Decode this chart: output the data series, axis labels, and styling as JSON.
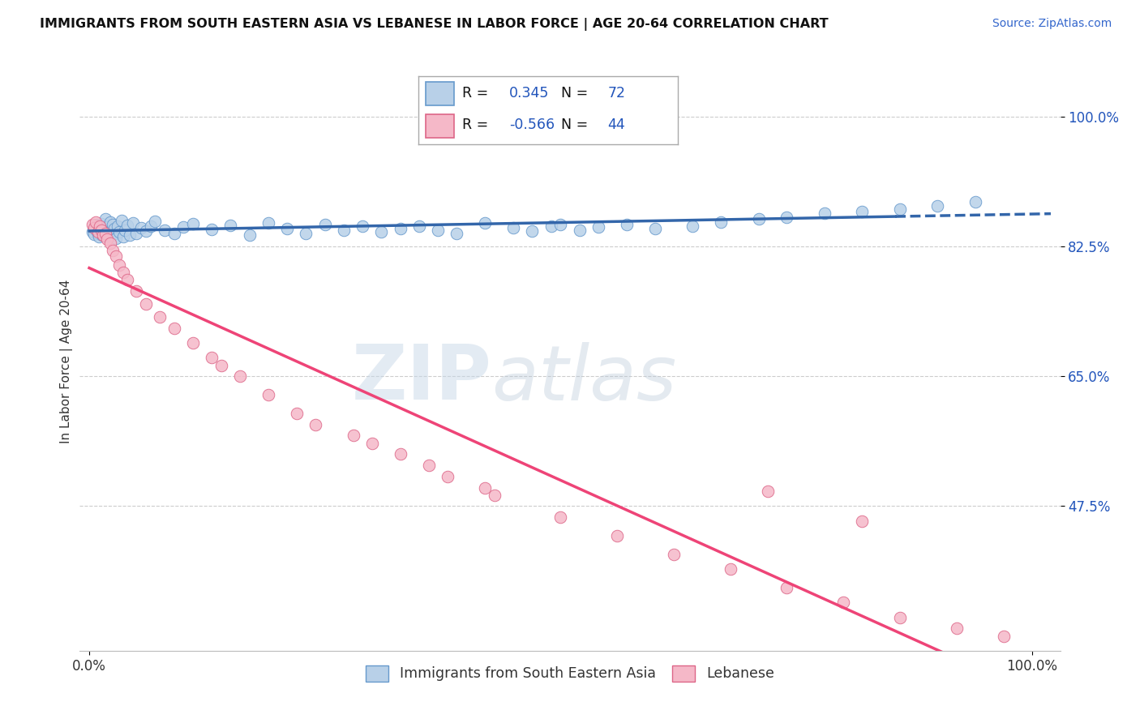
{
  "title": "IMMIGRANTS FROM SOUTH EASTERN ASIA VS LEBANESE IN LABOR FORCE | AGE 20-64 CORRELATION CHART",
  "source": "Source: ZipAtlas.com",
  "ylabel": "In Labor Force | Age 20-64",
  "xlim": [
    0.0,
    1.0
  ],
  "ylim": [
    0.28,
    1.06
  ],
  "yticks": [
    0.475,
    0.65,
    0.825,
    1.0
  ],
  "ytick_labels": [
    "47.5%",
    "65.0%",
    "82.5%",
    "100.0%"
  ],
  "xtick_labels": [
    "0.0%",
    "100.0%"
  ],
  "R_blue": 0.345,
  "N_blue": 72,
  "R_pink": -0.566,
  "N_pink": 44,
  "watermark_ZIP": "ZIP",
  "watermark_atlas": "atlas",
  "blue_fill": "#b8d0e8",
  "blue_edge": "#6699cc",
  "pink_fill": "#f5b8c8",
  "pink_edge": "#dd6688",
  "blue_line": "#3366aa",
  "pink_line": "#ee4477",
  "legend_blue_label": "Immigrants from South Eastern Asia",
  "legend_pink_label": "Lebanese",
  "blue_x": [
    0.003,
    0.005,
    0.007,
    0.008,
    0.009,
    0.01,
    0.011,
    0.012,
    0.013,
    0.014,
    0.015,
    0.016,
    0.017,
    0.018,
    0.019,
    0.02,
    0.022,
    0.023,
    0.024,
    0.025,
    0.026,
    0.027,
    0.028,
    0.03,
    0.032,
    0.034,
    0.036,
    0.038,
    0.04,
    0.043,
    0.046,
    0.05,
    0.055,
    0.06,
    0.065,
    0.07,
    0.08,
    0.09,
    0.1,
    0.11,
    0.13,
    0.15,
    0.17,
    0.19,
    0.21,
    0.23,
    0.25,
    0.27,
    0.29,
    0.31,
    0.33,
    0.35,
    0.37,
    0.39,
    0.42,
    0.45,
    0.47,
    0.49,
    0.5,
    0.52,
    0.54,
    0.57,
    0.6,
    0.64,
    0.67,
    0.71,
    0.74,
    0.78,
    0.82,
    0.86,
    0.9,
    0.94
  ],
  "blue_y": [
    0.845,
    0.842,
    0.848,
    0.855,
    0.843,
    0.838,
    0.852,
    0.847,
    0.856,
    0.84,
    0.853,
    0.846,
    0.862,
    0.838,
    0.851,
    0.844,
    0.858,
    0.839,
    0.847,
    0.855,
    0.842,
    0.849,
    0.836,
    0.852,
    0.845,
    0.86,
    0.838,
    0.847,
    0.854,
    0.841,
    0.857,
    0.843,
    0.85,
    0.846,
    0.853,
    0.859,
    0.847,
    0.843,
    0.851,
    0.856,
    0.848,
    0.854,
    0.84,
    0.857,
    0.849,
    0.843,
    0.855,
    0.847,
    0.852,
    0.845,
    0.849,
    0.853,
    0.847,
    0.843,
    0.857,
    0.85,
    0.846,
    0.852,
    0.855,
    0.847,
    0.851,
    0.855,
    0.849,
    0.853,
    0.858,
    0.862,
    0.865,
    0.87,
    0.872,
    0.875,
    0.88,
    0.885
  ],
  "pink_x": [
    0.003,
    0.005,
    0.007,
    0.009,
    0.011,
    0.013,
    0.015,
    0.017,
    0.019,
    0.022,
    0.025,
    0.028,
    0.032,
    0.036,
    0.04,
    0.05,
    0.06,
    0.075,
    0.09,
    0.11,
    0.13,
    0.16,
    0.19,
    0.22,
    0.28,
    0.33,
    0.38,
    0.43,
    0.5,
    0.56,
    0.62,
    0.68,
    0.74,
    0.8,
    0.86,
    0.92,
    0.97,
    0.14,
    0.24,
    0.3,
    0.36,
    0.42,
    0.72,
    0.82
  ],
  "pink_y": [
    0.855,
    0.85,
    0.858,
    0.845,
    0.852,
    0.847,
    0.84,
    0.843,
    0.835,
    0.83,
    0.82,
    0.812,
    0.8,
    0.79,
    0.78,
    0.765,
    0.748,
    0.73,
    0.715,
    0.695,
    0.675,
    0.65,
    0.625,
    0.6,
    0.57,
    0.545,
    0.515,
    0.49,
    0.46,
    0.435,
    0.41,
    0.39,
    0.365,
    0.345,
    0.325,
    0.31,
    0.3,
    0.665,
    0.585,
    0.56,
    0.53,
    0.5,
    0.495,
    0.455
  ]
}
